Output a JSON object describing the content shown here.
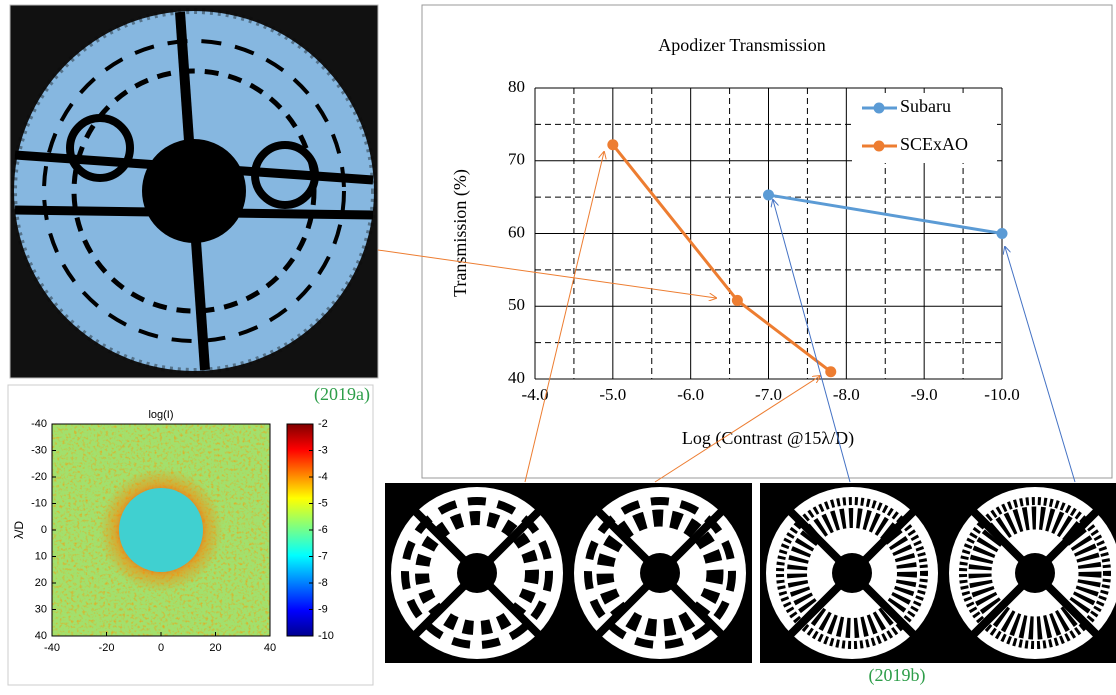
{
  "chart_data": [
    {
      "type": "line",
      "title": "Apodizer Transmission",
      "x_label": "Log (Contrast @15λ/D)",
      "y_label": "Transmission (%)",
      "xlim": [
        -4,
        -10
      ],
      "xticks": [
        {
          "value": -4,
          "label": "-4.0"
        },
        {
          "value": -5,
          "label": "-5.0"
        },
        {
          "value": -6,
          "label": "-6.0"
        },
        {
          "value": -7,
          "label": "-7.0"
        },
        {
          "value": -8,
          "label": "-8.0"
        },
        {
          "value": -9,
          "label": "-9.0"
        },
        {
          "value": -10,
          "label": "-10.0"
        }
      ],
      "ylim": [
        40,
        80
      ],
      "yticks": [
        40,
        50,
        60,
        70,
        80
      ],
      "grid": true,
      "minor_grid": true,
      "legend": "upper right",
      "series": [
        {
          "name": "Subaru",
          "color": "#5b9bd5",
          "x": [
            -7.0,
            -10.0
          ],
          "values": [
            65.3,
            60
          ]
        },
        {
          "name": "SCExAO",
          "color": "#ed7d31",
          "x": [
            -5.0,
            -6.6,
            -7.8
          ],
          "values": [
            72.2,
            50.8,
            41
          ]
        }
      ]
    },
    {
      "type": "heatmap",
      "title": "log(I)",
      "y_label": "λ/D",
      "xlim": [
        -40,
        40
      ],
      "xticks": [
        -40,
        -20,
        0,
        20,
        40
      ],
      "ylim": [
        -40,
        40
      ],
      "yticks": [
        -40,
        -30,
        -20,
        -10,
        0,
        10,
        20,
        30,
        40
      ],
      "clim": [
        -10,
        -2
      ],
      "cticks": [
        -2,
        -3,
        -4,
        -5,
        -6,
        -7,
        -8,
        -9,
        -10
      ]
    }
  ],
  "captions": {
    "a": "(2019a)",
    "b": "(2019b)"
  }
}
